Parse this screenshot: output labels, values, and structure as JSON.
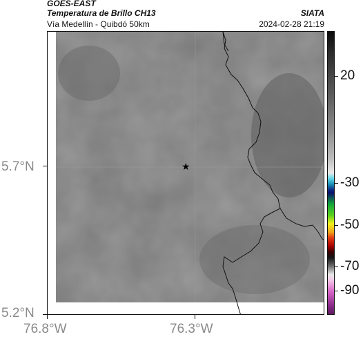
{
  "header": {
    "satellite": "GOES-EAST",
    "product": "Temperatura de Brillo CH13",
    "location": "Vía Medellín - Quibdó 50km",
    "agency": "SIATA",
    "datetime": "2024-02-28 21:19"
  },
  "axes": {
    "lat_ticks": [
      "5.7°N",
      "5.2°N"
    ],
    "lon_ticks": [
      "76.8°W",
      "76.3°W"
    ]
  },
  "colorbar": {
    "labels": [
      "20",
      "-30",
      "-50",
      "-70",
      "-90"
    ],
    "unit": ""
  },
  "map": {
    "marker_icon": "star-icon",
    "background_color": "#7d7d7d",
    "border_color": "#111111"
  }
}
